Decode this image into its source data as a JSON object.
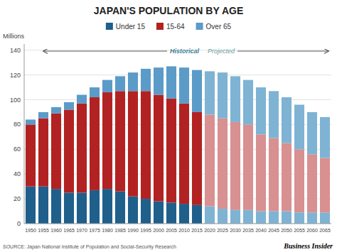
{
  "chart_data": {
    "type": "bar",
    "stacked": true,
    "title": "JAPAN'S POPULATION BY AGE",
    "ylabel": "Millions",
    "source": "SOURCE: Japan National Institute of Population and Social-Security Research",
    "annotations": [
      "Historical",
      "Projected",
      "Business Insider"
    ],
    "categories": [
      1950,
      1955,
      1960,
      1965,
      1970,
      1975,
      1980,
      1985,
      1990,
      1995,
      2000,
      2005,
      2010,
      2015,
      2020,
      2025,
      2030,
      2035,
      2040,
      2045,
      2050,
      2055,
      2060,
      2065
    ],
    "series": [
      {
        "name": "Under 15",
        "color": "#1f5f8b",
        "colors": [
          "#1f5f8b",
          "#1f5f8b",
          "#1f5f8b",
          "#1f5f8b",
          "#1f5f8b",
          "#1f5f8b",
          "#1f5f8b",
          "#1f5f8b",
          "#1f5f8b",
          "#1f5f8b",
          "#1f5f8b",
          "#1f5f8b",
          "#1f5f8b",
          "#1f5f8b",
          "#7fb3d3",
          "#7fb3d3",
          "#7fb3d3",
          "#7fb3d3",
          "#7fb3d3",
          "#7fb3d3",
          "#7fb3d3",
          "#7fb3d3",
          "#7fb3d3",
          "#7fb3d3"
        ],
        "values": [
          30,
          30,
          28,
          25,
          25,
          27,
          28,
          26,
          22,
          20,
          18,
          17,
          16,
          15,
          14,
          12,
          11,
          11,
          10,
          10,
          10,
          9,
          9,
          9
        ]
      },
      {
        "name": "15-64",
        "color": "#b22222",
        "colors": [
          "#b22222",
          "#b22222",
          "#b22222",
          "#b22222",
          "#b22222",
          "#b22222",
          "#b22222",
          "#b22222",
          "#b22222",
          "#b22222",
          "#b22222",
          "#b22222",
          "#b22222",
          "#b22222",
          "#d89090",
          "#d89090",
          "#d89090",
          "#d89090",
          "#d89090",
          "#d89090",
          "#d89090",
          "#d89090",
          "#d89090",
          "#d89090"
        ],
        "values": [
          50,
          55,
          61,
          67,
          72,
          75,
          78,
          81,
          85,
          87,
          86,
          84,
          81,
          75,
          74,
          73,
          71,
          69,
          62,
          59,
          55,
          51,
          47,
          44
        ]
      },
      {
        "name": "Over 65",
        "color": "#5b9bc8",
        "colors": [
          "#5b9bc8",
          "#5b9bc8",
          "#5b9bc8",
          "#5b9bc8",
          "#5b9bc8",
          "#5b9bc8",
          "#5b9bc8",
          "#5b9bc8",
          "#5b9bc8",
          "#5b9bc8",
          "#5b9bc8",
          "#5b9bc8",
          "#5b9bc8",
          "#5b9bc8",
          "#7fb3d3",
          "#7fb3d3",
          "#7fb3d3",
          "#7fb3d3",
          "#7fb3d3",
          "#7fb3d3",
          "#7fb3d3",
          "#7fb3d3",
          "#7fb3d3",
          "#7fb3d3"
        ],
        "values": [
          4,
          5,
          5,
          6,
          7,
          8,
          10,
          12,
          15,
          18,
          22,
          26,
          29,
          34,
          35,
          37,
          37,
          36,
          38,
          38,
          37,
          36,
          34,
          33
        ]
      }
    ],
    "ylim": [
      0,
      145
    ],
    "yticks": [
      0,
      20,
      40,
      60,
      80,
      100,
      120,
      140
    ],
    "grid": true,
    "legend": "top"
  }
}
